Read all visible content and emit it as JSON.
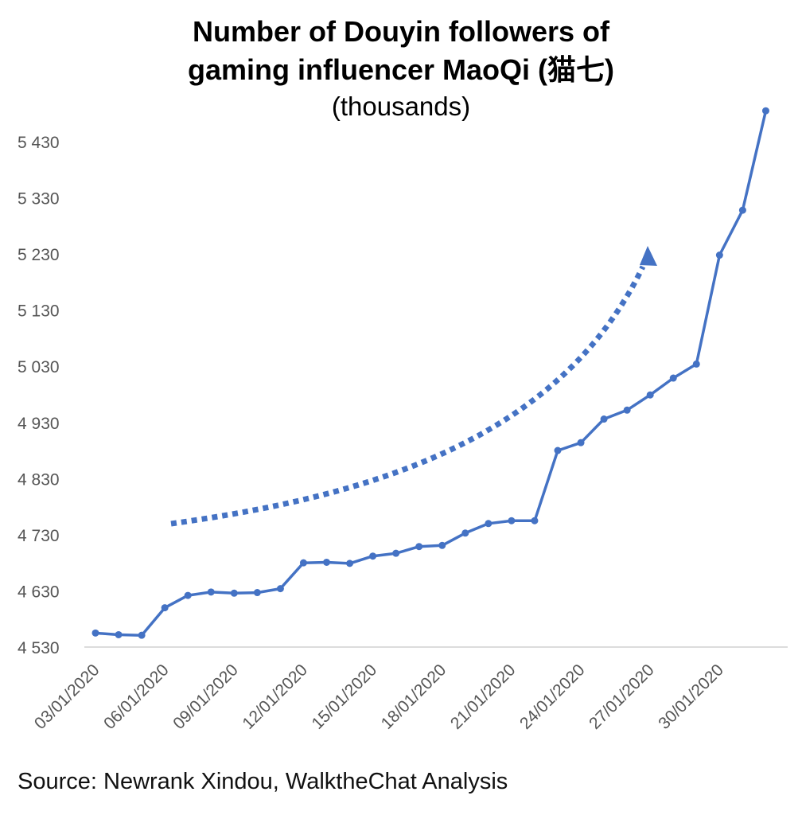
{
  "chart_data": {
    "type": "line",
    "title_line1": "Number of Douyin followers of",
    "title_line2": "gaming influencer MaoQi (猫七)",
    "subtitle": "(thousands)",
    "source": "Source: Newrank Xindou, WalktheChat Analysis",
    "ylim": [
      4530,
      5430
    ],
    "yticks": [
      "4 530",
      "4 630",
      "4 730",
      "4 830",
      "4 930",
      "5 030",
      "5 130",
      "5 230",
      "5 330",
      "5 430"
    ],
    "ytick_values": [
      4530,
      4630,
      4730,
      4830,
      4930,
      5030,
      5130,
      5230,
      5330,
      5430
    ],
    "xtick_labels": [
      "03/01/2020",
      "06/01/2020",
      "09/01/2020",
      "12/01/2020",
      "15/01/2020",
      "18/01/2020",
      "21/01/2020",
      "24/01/2020",
      "27/01/2020",
      "30/01/2020"
    ],
    "x": [
      "03/01/2020",
      "04/01/2020",
      "05/01/2020",
      "06/01/2020",
      "07/01/2020",
      "08/01/2020",
      "09/01/2020",
      "10/01/2020",
      "11/01/2020",
      "12/01/2020",
      "13/01/2020",
      "14/01/2020",
      "15/01/2020",
      "16/01/2020",
      "17/01/2020",
      "18/01/2020",
      "19/01/2020",
      "20/01/2020",
      "21/01/2020",
      "22/01/2020",
      "23/01/2020",
      "24/01/2020",
      "25/01/2020",
      "26/01/2020",
      "27/01/2020",
      "28/01/2020",
      "29/01/2020",
      "30/01/2020",
      "31/01/2020",
      "01/02/2020"
    ],
    "series": [
      {
        "values": [
          4555,
          4552,
          4551,
          4600,
          4622,
          4628,
          4626,
          4627,
          4634,
          4680,
          4681,
          4679,
          4692,
          4697,
          4709,
          4711,
          4733,
          4750,
          4755,
          4755,
          4880,
          4894,
          4936,
          4952,
          4979,
          5009,
          5034,
          5228,
          5308,
          5485
        ]
      }
    ],
    "line_color": "#4472C4",
    "annotation": "dotted-trend-arrow"
  }
}
